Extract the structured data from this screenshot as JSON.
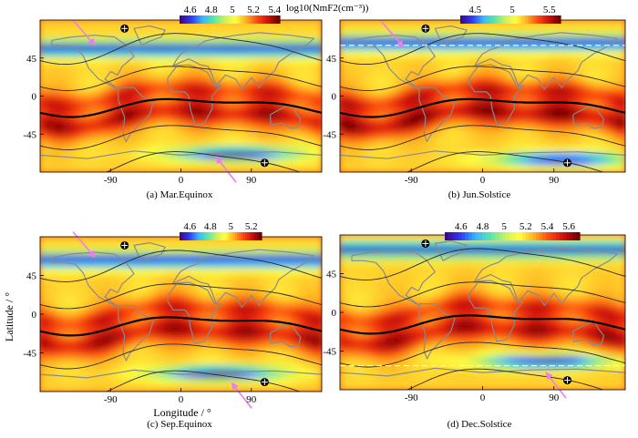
{
  "figure": {
    "ylabel": "Latitude / °",
    "xlabel": "Longitude / °",
    "colorbar_unit": "log10(NmF2(cm⁻³))"
  },
  "colors": {
    "scale": [
      "#3b0a8c",
      "#2d3cff",
      "#38b6ff",
      "#55e6b0",
      "#c8f060",
      "#ffff40",
      "#ffb020",
      "#ff4a10",
      "#d21010",
      "#6e0000"
    ],
    "coast": "#8a8a8a",
    "arrow": "#ee7cf0",
    "contour_thin": "#2a2a2a",
    "contour_bold": "#000000",
    "dashed_line": "#ffffff"
  },
  "chart_data": [
    {
      "type": "heatmap",
      "caption": "(a) Mar.Equinox",
      "colorbar_ticks": [
        "4.6",
        "4.8",
        "5",
        "5.2",
        "5.4"
      ],
      "colorbar_range": [
        4.5,
        5.45
      ],
      "xticks": [
        "-90",
        "0",
        "90"
      ],
      "yticks": [
        "45",
        "0",
        "-45"
      ],
      "xlim": [
        -180,
        180
      ],
      "ylim": [
        -90,
        90
      ],
      "dip_equator_lat": -12,
      "magnetic_contours_lat_offsets": [
        -70,
        -35,
        35,
        70
      ],
      "features": {
        "north_low_lat": 55,
        "south_low_lat": -70,
        "south_low_lon": 70,
        "crest_strength": "high"
      },
      "pole_markers": [
        {
          "lon": -72,
          "lat": 80
        },
        {
          "lon": 107,
          "lat": -79
        }
      ],
      "arrows": [
        {
          "lon": -110,
          "lat": 60
        },
        {
          "lon": 45,
          "lat": -72
        }
      ]
    },
    {
      "type": "heatmap",
      "caption": "(b) Jun.Solstice",
      "colorbar_ticks": [
        "4.5",
        "5",
        "5.5"
      ],
      "colorbar_range": [
        4.3,
        5.65
      ],
      "xticks": [
        "-90",
        "0",
        "90"
      ],
      "yticks": [
        "45",
        "0",
        "-45"
      ],
      "xlim": [
        -180,
        180
      ],
      "ylim": [
        -90,
        90
      ],
      "dip_equator_lat": -12,
      "magnetic_contours_lat_offsets": [
        -70,
        -35,
        35,
        70
      ],
      "features": {
        "north_low_lat": 62,
        "south_low_lat": -76,
        "south_low_lon": 100,
        "crest_strength": "very-high"
      },
      "pole_markers": [
        {
          "lon": -72,
          "lat": 80
        },
        {
          "lon": 107,
          "lat": -79
        }
      ],
      "arrows": [
        {
          "lon": -100,
          "lat": 58
        }
      ],
      "dashed_line_lat": 60
    },
    {
      "type": "heatmap",
      "caption": "(c) Sep.Equinox",
      "colorbar_ticks": [
        "4.6",
        "4.8",
        "5",
        "5.2"
      ],
      "colorbar_range": [
        4.5,
        5.3
      ],
      "xticks": [
        "-90",
        "0",
        "90"
      ],
      "yticks": [
        "45",
        "0",
        "-45"
      ],
      "xlim": [
        -180,
        180
      ],
      "ylim": [
        -90,
        90
      ],
      "dip_equator_lat": -12,
      "magnetic_contours_lat_offsets": [
        -70,
        -35,
        35,
        70
      ],
      "features": {
        "north_low_lat": 62,
        "south_low_lat": -70,
        "south_low_lon": 50,
        "crest_strength": "high"
      },
      "pole_markers": [
        {
          "lon": -72,
          "lat": 80
        },
        {
          "lon": 107,
          "lat": -79
        }
      ],
      "arrows": [
        {
          "lon": -110,
          "lat": 66
        },
        {
          "lon": 65,
          "lat": -80
        }
      ]
    },
    {
      "type": "heatmap",
      "caption": "(d) Dec.Solstice",
      "colorbar_ticks": [
        "4.6",
        "4.8",
        "5",
        "5.2",
        "5.4",
        "5.6"
      ],
      "colorbar_range": [
        4.45,
        5.7
      ],
      "xticks": [
        "-90",
        "0",
        "90"
      ],
      "yticks": [
        "45",
        "0",
        "-45"
      ],
      "xlim": [
        -180,
        180
      ],
      "ylim": [
        -90,
        90
      ],
      "dip_equator_lat": -12,
      "magnetic_contours_lat_offsets": [
        -70,
        -35,
        35,
        70
      ],
      "features": {
        "north_low_lat": 72,
        "south_low_lat": -58,
        "south_low_lon": 80,
        "crest_strength": "high"
      },
      "pole_markers": [
        {
          "lon": -72,
          "lat": 80
        },
        {
          "lon": 107,
          "lat": -79
        }
      ],
      "arrows": [
        {
          "lon": 80,
          "lat": -70
        }
      ],
      "dashed_line_lat": -62
    }
  ]
}
